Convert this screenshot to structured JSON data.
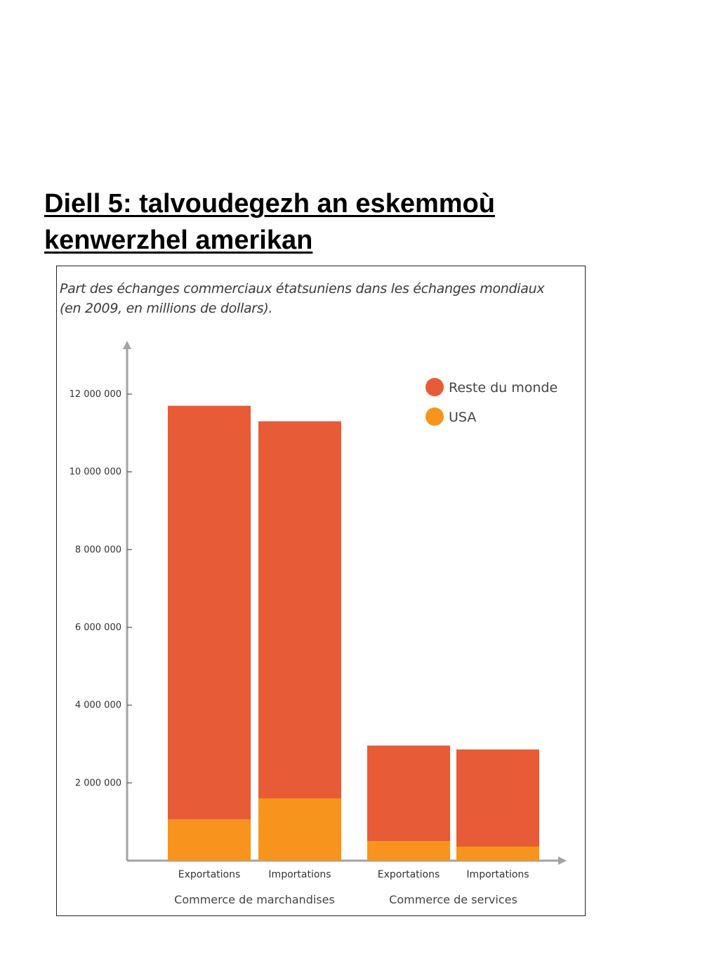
{
  "page": {
    "title_line1": "Diell 5: talvoudegezh an eskemmoù",
    "title_line2": "kenwerzhel amerikan"
  },
  "colors": {
    "rest": "#e75b36",
    "usa": "#f7941e",
    "axis": "#a3a3a3",
    "text": "#333333"
  },
  "chart_data": {
    "type": "bar",
    "stacked": true,
    "title_line1": "Part des échanges commerciaux étatsuniens dans les échanges mondiaux",
    "title_line2": "(en 2009, en millions de dollars).",
    "categories": [
      "Exportations",
      "Importations",
      "Exportations",
      "Importations"
    ],
    "groups": [
      {
        "label": "Commerce de marchandises",
        "categories": [
          0,
          1
        ]
      },
      {
        "label": "Commerce de services",
        "categories": [
          2,
          3
        ]
      }
    ],
    "series": [
      {
        "name": "USA",
        "color": "#f7941e",
        "values": [
          1060000,
          1600000,
          500000,
          360000
        ]
      },
      {
        "name": "Reste du monde",
        "color": "#e75b36",
        "values": [
          10640000,
          9700000,
          2460000,
          2500000
        ]
      }
    ],
    "legend_order": [
      "Reste du monde",
      "USA"
    ],
    "legend_position": "top-right",
    "yticks": [
      2000000,
      4000000,
      6000000,
      8000000,
      10000000,
      12000000
    ],
    "ytick_labels": [
      "2 000 000",
      "4 000 000",
      "6 000 000",
      "8 000 000",
      "10 000 000",
      "12 000 000"
    ],
    "ylim": [
      0,
      13300000
    ],
    "xlabel": "",
    "ylabel": ""
  }
}
